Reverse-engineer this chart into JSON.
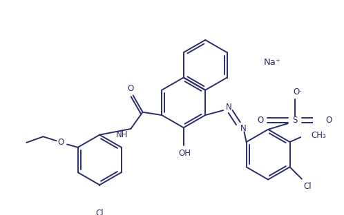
{
  "bg_color": "#ffffff",
  "line_color": "#2b2b6b",
  "text_color": "#2b2b6b",
  "figsize": [
    4.98,
    3.12
  ],
  "dpi": 100,
  "na_label": "Na⁺",
  "oh_label": "OH",
  "cl_label": "Cl",
  "o_label": "O",
  "o_minus_label": "O·",
  "s_label": "S",
  "n_label": "N",
  "nh_label": "NH",
  "ch3_label": "CH₃",
  "ethoxy_o_label": "O"
}
